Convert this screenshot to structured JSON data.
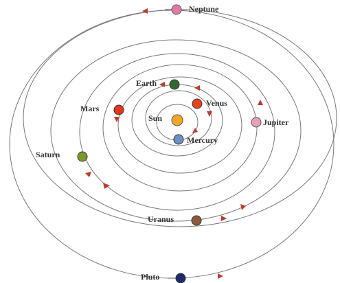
{
  "nodes": [
    {
      "label": "Neptune"
    },
    {
      "label": "Earth"
    },
    {
      "label": "Venus"
    },
    {
      "label": "Mars"
    },
    {
      "label": "Sun"
    },
    {
      "label": "Jupiter"
    },
    {
      "label": "Mercury"
    },
    {
      "label": "Saturn"
    },
    {
      "label": "Uranus"
    },
    {
      "label": "Pluto"
    }
  ]
}
